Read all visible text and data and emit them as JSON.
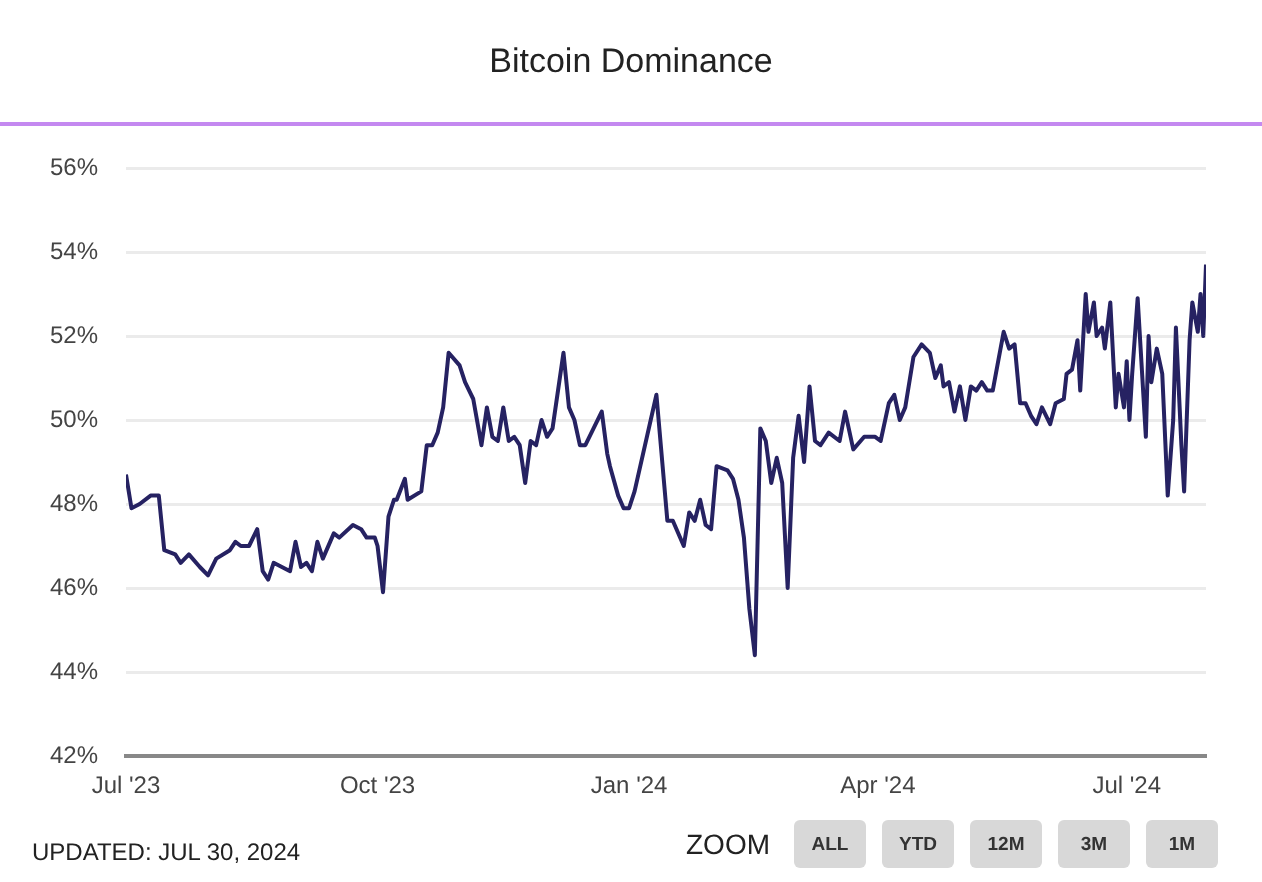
{
  "chart_data": {
    "type": "line",
    "title": "Bitcoin Dominance",
    "x": [
      "2023-07-01",
      "2023-07-03",
      "2023-07-06",
      "2023-07-10",
      "2023-07-13",
      "2023-07-15",
      "2023-07-19",
      "2023-07-21",
      "2023-07-24",
      "2023-07-28",
      "2023-07-31",
      "2023-08-03",
      "2023-08-08",
      "2023-08-10",
      "2023-08-12",
      "2023-08-15",
      "2023-08-18",
      "2023-08-20",
      "2023-08-22",
      "2023-08-24",
      "2023-08-30",
      "2023-09-01",
      "2023-09-03",
      "2023-09-05",
      "2023-09-07",
      "2023-09-09",
      "2023-09-11",
      "2023-09-15",
      "2023-09-17",
      "2023-09-22",
      "2023-09-25",
      "2023-09-27",
      "2023-09-30",
      "2023-10-01",
      "2023-10-03",
      "2023-10-05",
      "2023-10-07",
      "2023-10-08",
      "2023-10-11",
      "2023-10-12",
      "2023-10-17",
      "2023-10-19",
      "2023-10-21",
      "2023-10-23",
      "2023-10-25",
      "2023-10-27",
      "2023-10-31",
      "2023-11-02",
      "2023-11-05",
      "2023-11-08",
      "2023-11-10",
      "2023-11-12",
      "2023-11-14",
      "2023-11-16",
      "2023-11-18",
      "2023-11-20",
      "2023-11-22",
      "2023-11-24",
      "2023-11-26",
      "2023-11-28",
      "2023-11-30",
      "2023-12-02",
      "2023-12-04",
      "2023-12-06",
      "2023-12-08",
      "2023-12-10",
      "2023-12-12",
      "2023-12-14",
      "2023-12-16",
      "2023-12-22",
      "2023-12-24",
      "2023-12-25",
      "2023-12-28",
      "2023-12-30",
      "2024-01-01",
      "2024-01-03",
      "2024-01-11",
      "2024-01-15",
      "2024-01-17",
      "2024-01-21",
      "2024-01-23",
      "2024-01-25",
      "2024-01-27",
      "2024-01-29",
      "2024-01-31",
      "2024-02-02",
      "2024-02-06",
      "2024-02-08",
      "2024-02-10",
      "2024-02-12",
      "2024-02-14",
      "2024-02-16",
      "2024-02-18",
      "2024-02-20",
      "2024-02-22",
      "2024-02-24",
      "2024-02-26",
      "2024-02-28",
      "2024-03-01",
      "2024-03-03",
      "2024-03-05",
      "2024-03-07",
      "2024-03-09",
      "2024-03-11",
      "2024-03-14",
      "2024-03-18",
      "2024-03-20",
      "2024-03-23",
      "2024-03-27",
      "2024-03-31",
      "2024-04-02",
      "2024-04-05",
      "2024-04-07",
      "2024-04-09",
      "2024-04-11",
      "2024-04-14",
      "2024-04-17",
      "2024-04-20",
      "2024-04-22",
      "2024-04-24",
      "2024-04-25",
      "2024-04-27",
      "2024-04-29",
      "2024-05-01",
      "2024-05-03",
      "2024-05-05",
      "2024-05-07",
      "2024-05-09",
      "2024-05-11",
      "2024-05-13",
      "2024-05-15",
      "2024-05-17",
      "2024-05-19",
      "2024-05-21",
      "2024-05-23",
      "2024-05-25",
      "2024-05-27",
      "2024-05-29",
      "2024-05-31",
      "2024-06-03",
      "2024-06-05",
      "2024-06-08",
      "2024-06-09",
      "2024-06-11",
      "2024-06-13",
      "2024-06-14",
      "2024-06-16",
      "2024-06-17",
      "2024-06-19",
      "2024-06-20",
      "2024-06-22",
      "2024-06-23",
      "2024-06-25",
      "2024-06-27",
      "2024-06-28",
      "2024-06-30",
      "2024-07-01",
      "2024-07-02",
      "2024-07-03",
      "2024-07-05",
      "2024-07-08",
      "2024-07-09",
      "2024-07-10",
      "2024-07-12",
      "2024-07-14",
      "2024-07-16",
      "2024-07-18",
      "2024-07-19",
      "2024-07-21",
      "2024-07-22",
      "2024-07-24",
      "2024-07-25",
      "2024-07-27",
      "2024-07-28",
      "2024-07-29",
      "2024-07-30"
    ],
    "series": [
      {
        "color": "#262262",
        "values": [
          48.7,
          47.9,
          48.0,
          48.2,
          48.2,
          46.9,
          46.8,
          46.6,
          46.8,
          46.5,
          46.3,
          46.7,
          46.9,
          47.1,
          47.0,
          47.0,
          47.4,
          46.4,
          46.2,
          46.6,
          46.4,
          47.1,
          46.5,
          46.6,
          46.4,
          47.1,
          46.7,
          47.3,
          47.2,
          47.5,
          47.4,
          47.2,
          47.2,
          47.0,
          45.9,
          47.7,
          48.1,
          48.1,
          48.6,
          48.1,
          48.3,
          49.4,
          49.4,
          49.7,
          50.3,
          51.6,
          51.3,
          50.9,
          50.5,
          49.4,
          50.3,
          49.6,
          49.5,
          50.3,
          49.5,
          49.6,
          49.4,
          48.5,
          49.5,
          49.4,
          50.0,
          49.6,
          49.8,
          50.7,
          51.6,
          50.3,
          50.0,
          49.4,
          49.4,
          50.2,
          49.2,
          48.9,
          48.2,
          47.9,
          47.9,
          48.3,
          50.6,
          47.6,
          47.6,
          47.0,
          47.8,
          47.6,
          48.1,
          47.5,
          47.4,
          48.9,
          48.8,
          48.6,
          48.1,
          47.2,
          45.5,
          44.4,
          49.8,
          49.5,
          48.5,
          49.1,
          48.5,
          46.0,
          49.1,
          50.1,
          49.0,
          50.8,
          49.5,
          49.4,
          49.7,
          49.5,
          50.2,
          49.3,
          49.6,
          49.6,
          49.5,
          50.4,
          50.6,
          50.0,
          50.3,
          51.5,
          51.8,
          51.6,
          51.0,
          51.3,
          50.8,
          50.9,
          50.2,
          50.8,
          50.0,
          50.8,
          50.7,
          50.9,
          50.7,
          50.7,
          51.4,
          52.1,
          51.7,
          51.8,
          50.4,
          50.4,
          50.1,
          49.9,
          50.3,
          49.9,
          50.4,
          50.5,
          51.1,
          51.2,
          51.9,
          50.7,
          53.0,
          52.1,
          52.8,
          52.0,
          52.2,
          51.7,
          52.8,
          50.3,
          51.1,
          50.3,
          51.4,
          50.0,
          51.1,
          52.9,
          49.6,
          52.0,
          50.9,
          51.7,
          51.1,
          48.2,
          50.0,
          52.2,
          49.4,
          48.3,
          51.9,
          52.8,
          52.1,
          53.0,
          52.0,
          53.7
        ]
      }
    ],
    "xlim": [
      "2023-07-01",
      "2024-07-30"
    ],
    "xticks": [
      {
        "value": "2023-07-01",
        "label": "Jul '23"
      },
      {
        "value": "2023-10-01",
        "label": "Oct '23"
      },
      {
        "value": "2024-01-01",
        "label": "Jan '24"
      },
      {
        "value": "2024-04-01",
        "label": "Apr '24"
      },
      {
        "value": "2024-07-01",
        "label": "Jul '24"
      }
    ],
    "ylim": [
      42,
      56
    ],
    "yticks": [
      {
        "value": 42,
        "label": "42%"
      },
      {
        "value": 44,
        "label": "44%"
      },
      {
        "value": 46,
        "label": "46%"
      },
      {
        "value": 48,
        "label": "48%"
      },
      {
        "value": 50,
        "label": "50%"
      },
      {
        "value": 52,
        "label": "52%"
      },
      {
        "value": 54,
        "label": "54%"
      },
      {
        "value": 56,
        "label": "56%"
      }
    ],
    "grid": "y",
    "marker": "none",
    "line_style": "solid",
    "annotations": [
      "UPDATED: JUL 30, 2024",
      "ZOOM",
      "ALL",
      "YTD",
      "12M",
      "3M",
      "1M"
    ]
  }
}
